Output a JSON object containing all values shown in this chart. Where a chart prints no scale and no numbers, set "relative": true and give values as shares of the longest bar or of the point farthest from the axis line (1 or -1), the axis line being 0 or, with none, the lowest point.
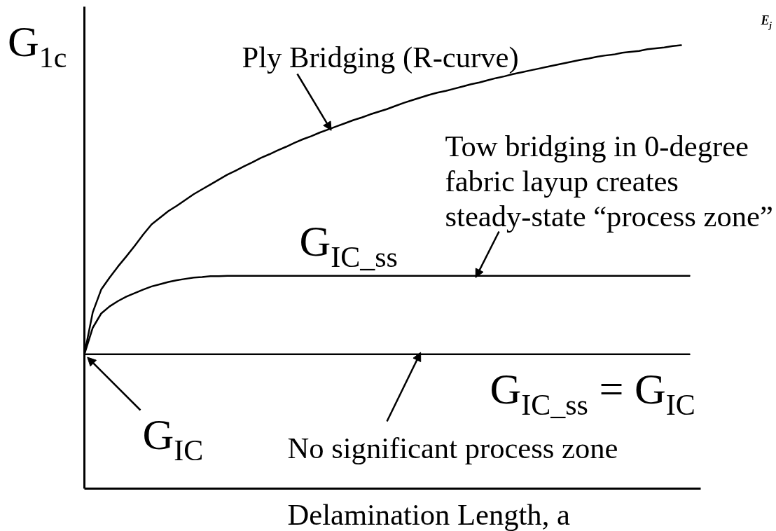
{
  "chart_data": {
    "type": "line",
    "relative": true,
    "tick_labels": false,
    "xlabel": "Delamination Length, a",
    "ylabel": "G$_{1c}$",
    "categories": [
      null,
      null,
      null,
      null,
      null,
      null,
      null,
      null,
      null,
      null,
      null,
      null,
      null,
      null,
      null,
      null,
      null,
      null,
      null,
      null,
      null,
      null,
      null,
      null,
      null,
      null,
      null,
      null,
      null,
      null,
      null,
      null,
      null,
      null,
      null,
      null,
      null,
      null,
      null,
      null,
      null,
      null,
      null,
      null,
      null,
      null,
      null,
      null,
      null,
      null,
      null,
      null,
      null,
      null,
      null,
      null,
      null,
      null,
      null,
      null,
      null,
      null,
      null,
      null,
      null,
      null,
      null,
      null,
      null,
      null,
      null,
      null,
      null
    ],
    "series": [
      {
        "color": "#000000",
        "values": [
          0.303,
          0.398,
          0.449,
          0.476,
          0.501,
          0.524,
          0.548,
          0.573,
          0.596,
          0.611,
          0.626,
          0.638,
          0.651,
          0.664,
          0.675,
          0.686,
          0.697,
          0.708,
          0.717,
          0.727,
          0.736,
          0.746,
          0.754,
          0.763,
          0.771,
          0.78,
          0.788,
          0.795,
          0.803,
          0.81,
          0.817,
          0.824,
          0.831,
          0.837,
          0.844,
          0.85,
          0.856,
          0.863,
          0.87,
          0.876,
          0.882,
          0.888,
          0.893,
          0.897,
          0.902,
          0.907,
          0.912,
          0.916,
          0.921,
          0.926,
          0.93,
          0.935,
          0.939,
          0.943,
          0.947,
          0.951,
          0.955,
          0.959,
          0.963,
          0.967,
          0.97,
          0.974,
          0.977,
          0.979,
          0.983,
          0.985,
          0.987,
          0.991,
          0.993,
          0.995,
          0.998,
          1,
          null
        ]
      },
      {
        "color": "#000000",
        "values": [
          0.303,
          0.363,
          0.395,
          0.411,
          0.423,
          0.433,
          0.441,
          0.449,
          0.456,
          0.461,
          0.466,
          0.47,
          0.473,
          0.476,
          0.477,
          0.479,
          0.479,
          0.48,
          0.48,
          0.48,
          0.48,
          0.48,
          0.48,
          0.48,
          0.48,
          0.48,
          0.48,
          0.48,
          0.48,
          0.48,
          0.48,
          0.48,
          0.48,
          0.48,
          0.48,
          0.48,
          0.48,
          0.48,
          0.48,
          0.48,
          0.48,
          0.48,
          0.48,
          0.48,
          0.48,
          0.48,
          0.48,
          0.48,
          0.48,
          0.48,
          0.48,
          0.48,
          0.48,
          0.48,
          0.48,
          0.48,
          0.48,
          0.48,
          0.48,
          0.48,
          0.48,
          0.48,
          0.48,
          0.48,
          0.48,
          0.48,
          0.48,
          0.48,
          0.48,
          0.48,
          0.48,
          0.48,
          0.48
        ]
      },
      {
        "color": "#000000",
        "values": [
          0.303,
          0.303,
          0.303,
          0.303,
          0.303,
          0.303,
          0.303,
          0.303,
          0.303,
          0.303,
          0.303,
          0.303,
          0.303,
          0.303,
          0.303,
          0.303,
          0.303,
          0.303,
          0.303,
          0.303,
          0.303,
          0.303,
          0.303,
          0.303,
          0.303,
          0.303,
          0.303,
          0.303,
          0.303,
          0.303,
          0.303,
          0.303,
          0.303,
          0.303,
          0.303,
          0.303,
          0.303,
          0.303,
          0.303,
          0.303,
          0.303,
          0.303,
          0.303,
          0.303,
          0.303,
          0.303,
          0.303,
          0.303,
          0.303,
          0.303,
          0.303,
          0.303,
          0.303,
          0.303,
          0.303,
          0.303,
          0.303,
          0.303,
          0.303,
          0.303,
          0.303,
          0.303,
          0.303,
          0.303,
          0.303,
          0.303,
          0.303,
          0.303,
          0.303,
          0.303,
          0.303,
          0.303,
          0.303
        ]
      }
    ],
    "annotations": [
      "Ply Bridging (R-curve)",
      "G$_{IC_ss}$",
      {
        "text": "Tow bridging in 0-degree\nfabric layup creates\nsteady-state “process zone”",
        "y": 0.48
      },
      {
        "text": "G$_{IC}$",
        "y": 0.303
      },
      {
        "text": "No significant process zone",
        "y": 0.303
      },
      "G$_{IC_ss}$ = G$_{IC}$",
      "E$_{j}$"
    ]
  }
}
